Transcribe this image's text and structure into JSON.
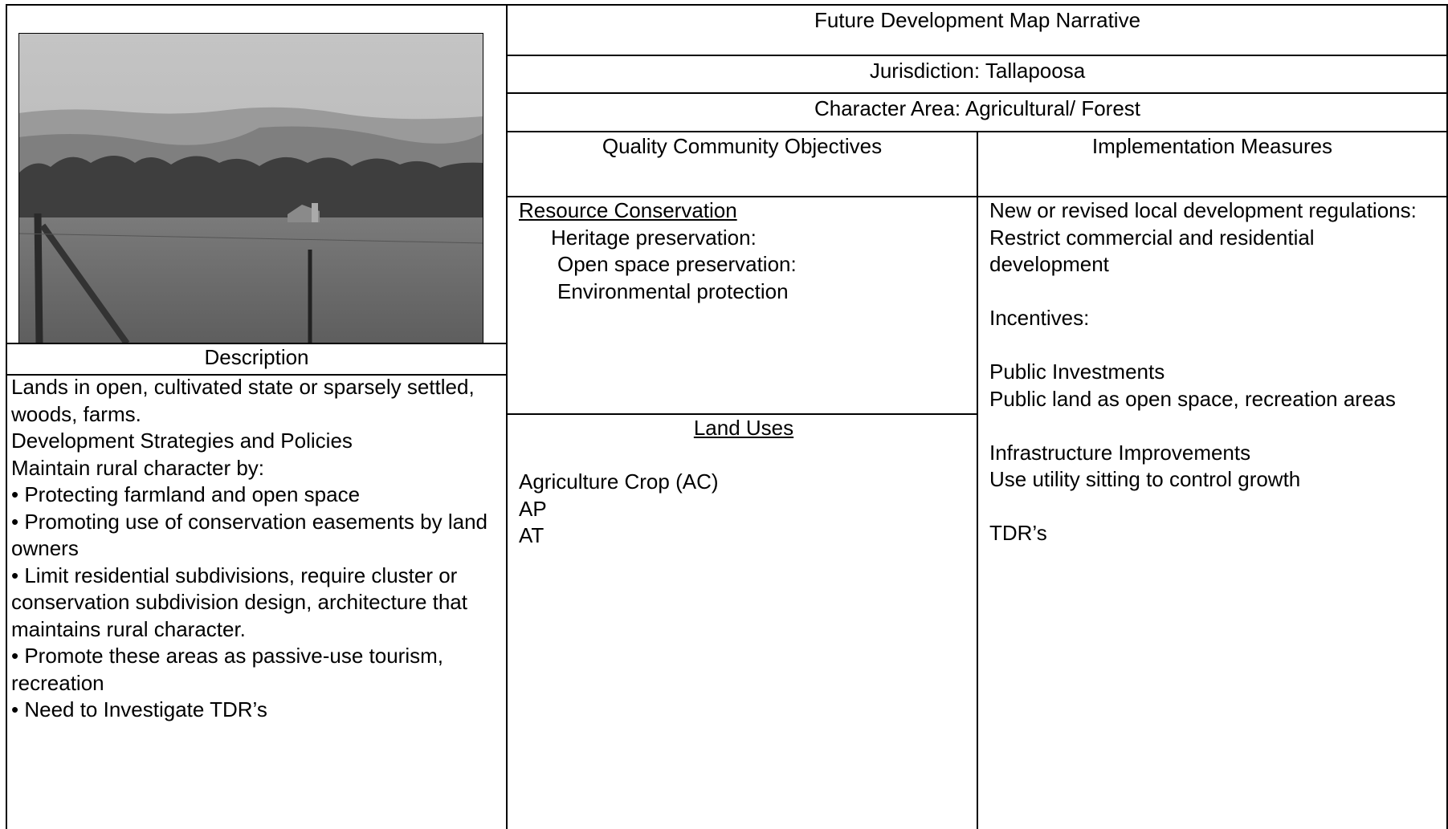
{
  "header": {
    "title": "Future Development Map Narrative",
    "jurisdiction": "Jurisdiction: Tallapoosa",
    "character_area": "Character Area: Agricultural/ Forest"
  },
  "description": {
    "heading": "Description",
    "paragraphs": [
      "Lands in open, cultivated state or sparsely settled, woods, farms.",
      "Development Strategies and Policies",
      "Maintain rural character by:",
      "• Protecting farmland and open space",
      "• Promoting use of conservation easements by land owners",
      "• Limit residential subdivisions, require cluster or conservation subdivision design, architecture that maintains rural character.",
      "• Promote these areas as passive-use tourism, recreation",
      "• Need to Investigate TDR’s"
    ]
  },
  "objectives": {
    "heading": "Quality Community Objectives",
    "section": "Resource Conservation",
    "items": [
      "Heritage preservation:",
      "Open space preservation:",
      "Environmental protection"
    ]
  },
  "land_uses": {
    "heading": "Land Uses",
    "items": [
      "Agriculture Crop (AC)",
      "AP",
      "AT"
    ]
  },
  "implementation": {
    "heading": "Implementation Measures",
    "groups": [
      [
        "New or revised local development regulations:",
        "Restrict commercial and residential development"
      ],
      [
        "Incentives:"
      ],
      [
        "Public Investments",
        "Public land as open space, recreation areas"
      ],
      [
        "Infrastructure Improvements",
        "Use utility sitting to control growth"
      ],
      [
        "TDR’s"
      ]
    ]
  }
}
